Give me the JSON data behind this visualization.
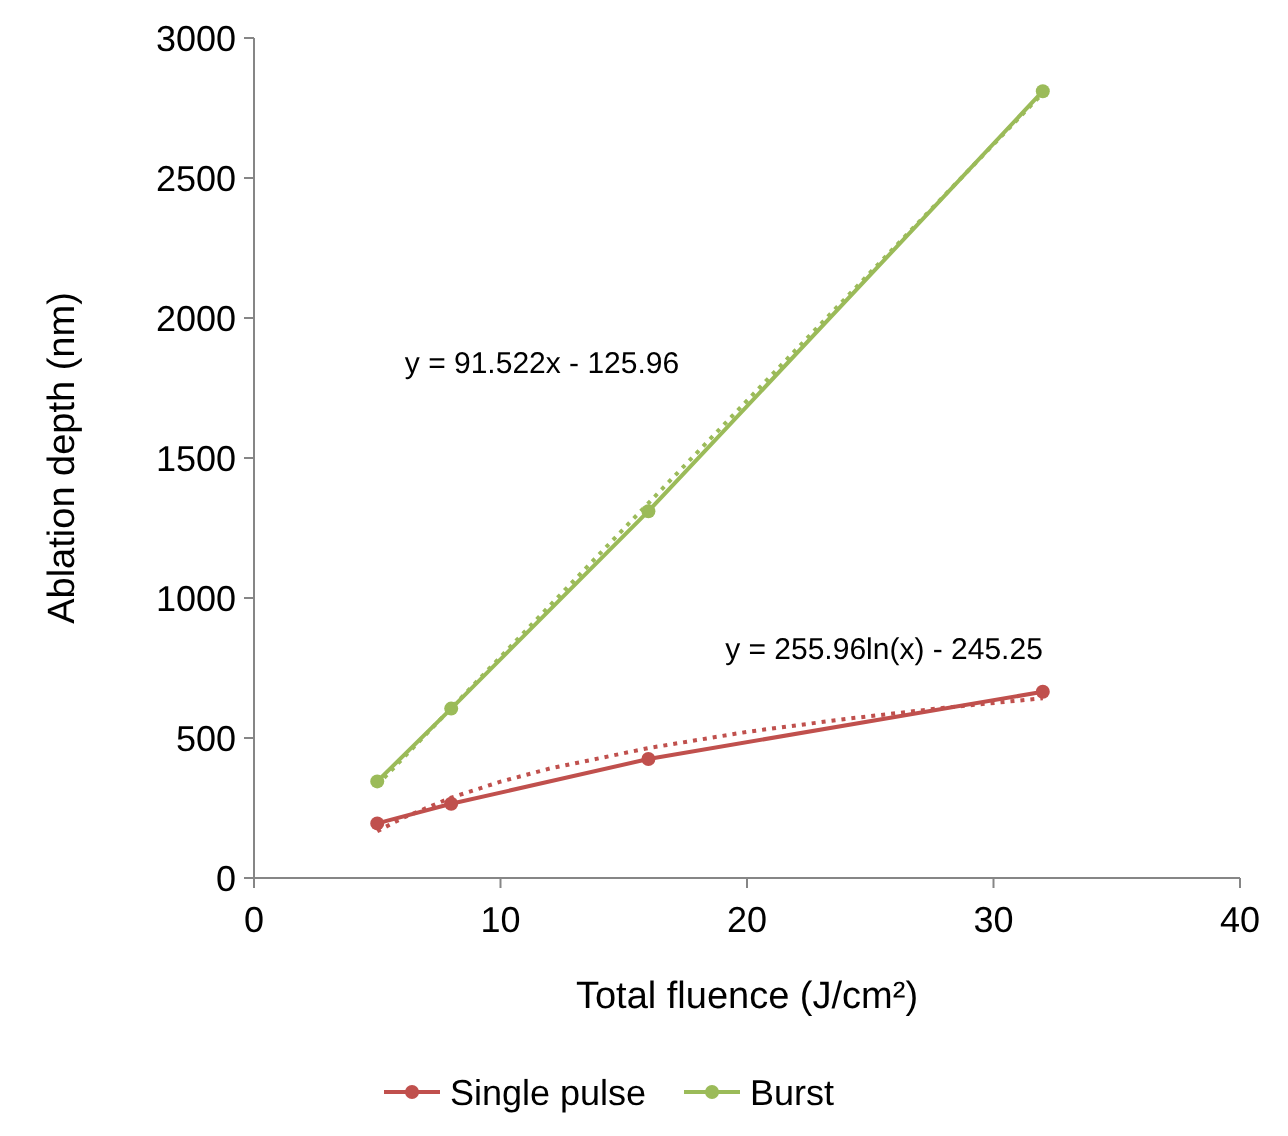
{
  "chart_data": {
    "type": "line",
    "xlabel": "Total fluence (J/cm²)",
    "ylabel": "Ablation depth (nm)",
    "xlim": [
      0,
      40
    ],
    "xticks": [
      0,
      10,
      20,
      30,
      40
    ],
    "ylim": [
      0,
      3000
    ],
    "yticks": [
      0,
      500,
      1000,
      1500,
      2000,
      2500,
      3000
    ],
    "grid": false,
    "legend": "bottom",
    "marker": "circle",
    "line_style": "solid",
    "series": [
      {
        "name": "Single pulse",
        "color": "#c0504d",
        "x": [
          5,
          8,
          16,
          32
        ],
        "values": [
          195,
          265,
          425,
          665
        ]
      },
      {
        "name": "Burst",
        "color": "#9bbb59",
        "x": [
          5,
          8,
          16,
          32
        ],
        "values": [
          345,
          605,
          1310,
          2810
        ]
      },
      {
        "color": "#c0504d",
        "x": [
          5,
          6,
          8,
          10,
          12,
          16,
          20,
          24,
          28,
          32
        ],
        "values": [
          167,
          213,
          287,
          344,
          391,
          464,
          522,
          568,
          608,
          642
        ],
        "marker": "none",
        "line_style": "dotted"
      },
      {
        "color": "#9bbb59",
        "x": [
          5,
          32
        ],
        "values": [
          332,
          2803
        ],
        "marker": "none",
        "line_style": "dotted"
      }
    ],
    "annotations": [
      "y = 91.522x - 125.96",
      "y = 255.96ln(x) - 245.25"
    ]
  }
}
